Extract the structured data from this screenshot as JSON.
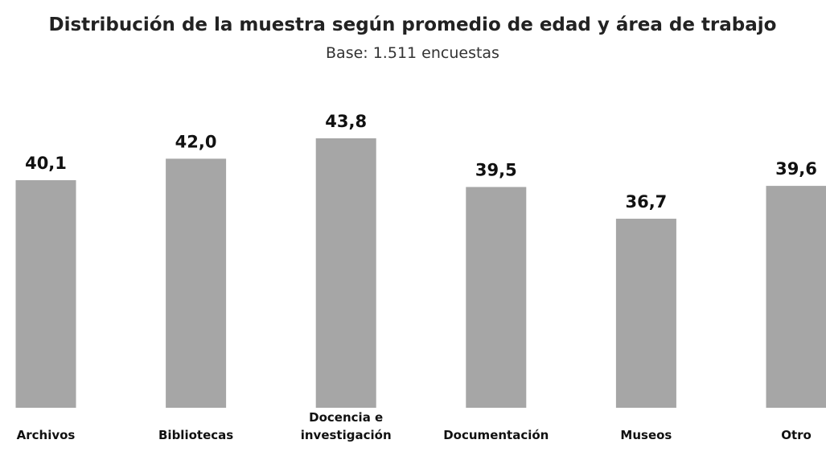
{
  "chart_data": {
    "type": "bar",
    "title": "Distribución de la muestra según promedio de edad y área de trabajo",
    "subtitle": "Base: 1.511 encuestas",
    "categories": [
      "Archivos",
      "Bibliotecas",
      "Docencia e investigación",
      "Documentación",
      "Museos",
      "Otro"
    ],
    "values": [
      40.1,
      42.0,
      43.8,
      39.5,
      36.7,
      39.6
    ],
    "value_labels": [
      "40,1",
      "42,0",
      "43,8",
      "39,5",
      "36,7",
      "39,6"
    ],
    "color": "#a6a6a6",
    "ylim": [
      20,
      46
    ]
  }
}
